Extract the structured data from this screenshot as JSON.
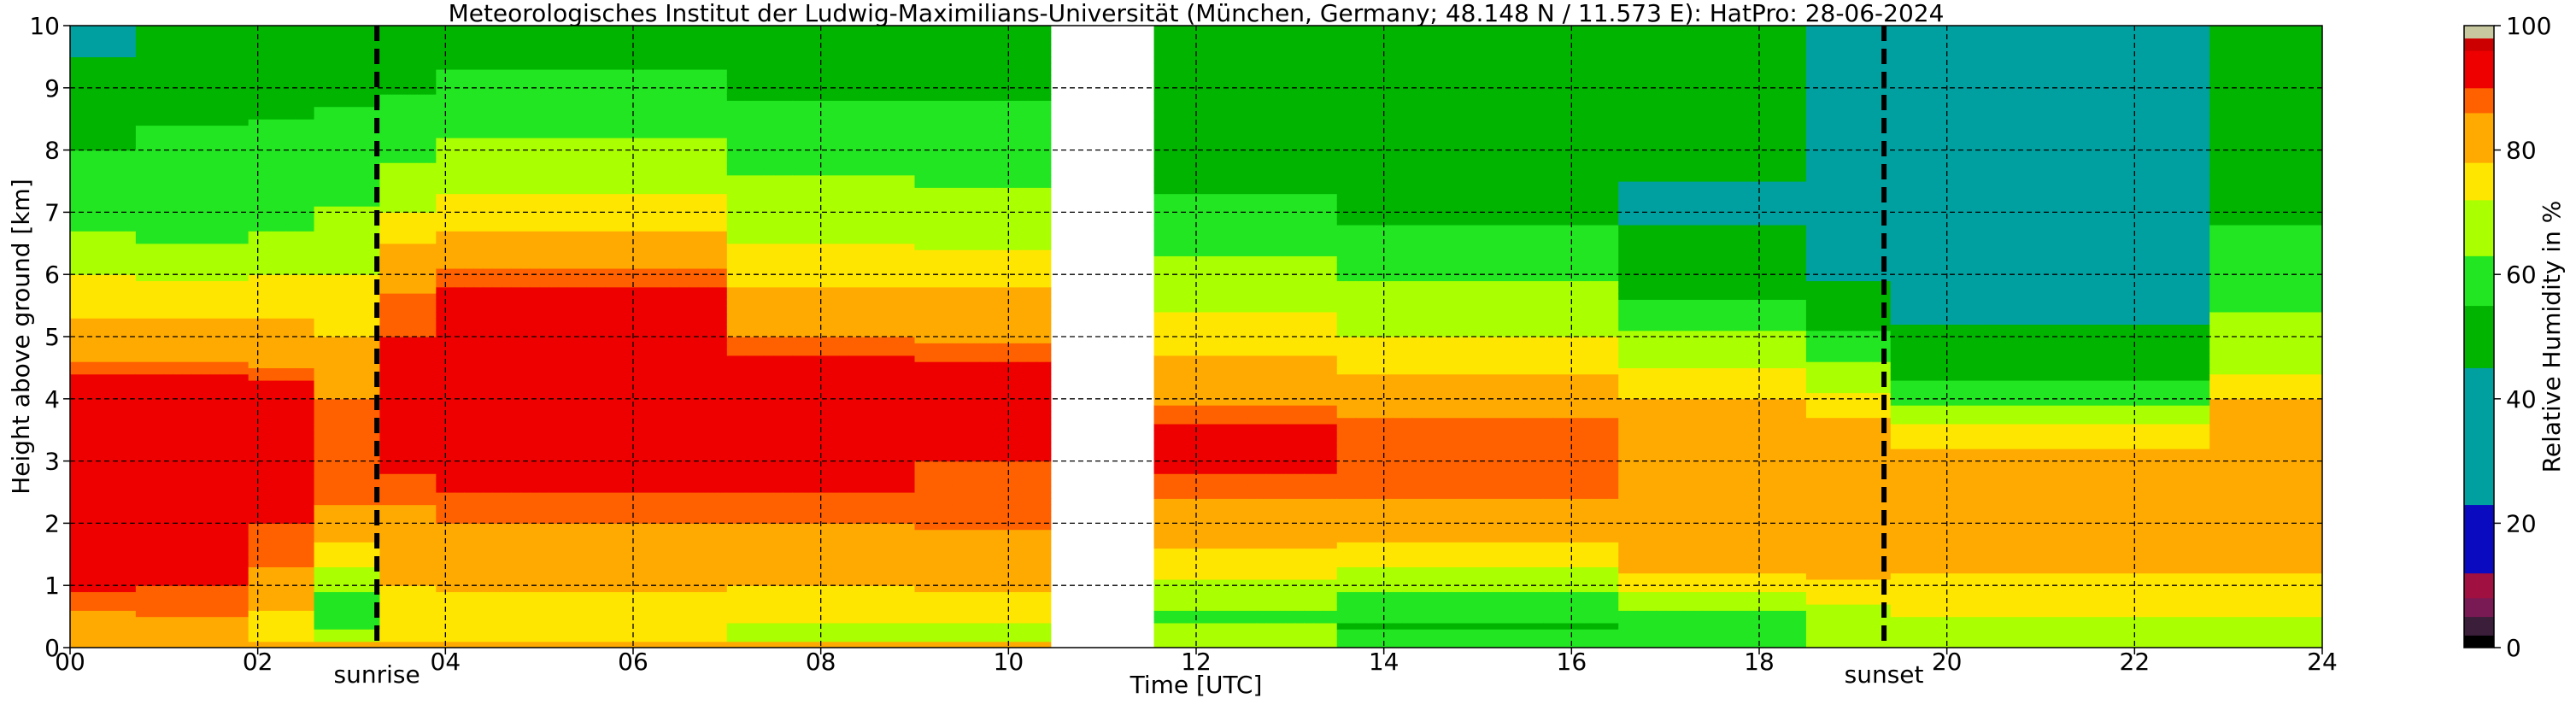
{
  "chart_data": {
    "type": "heatmap",
    "title": "Meteorologisches Institut der Ludwig-Maximilians-Universität (München, Germany; 48.148 N / 11.573 E):    HatPro: 28-06-2024",
    "xlabel": "Time [UTC]",
    "ylabel": "Height above ground [km]",
    "xlim": [
      0,
      24
    ],
    "ylim": [
      0,
      10
    ],
    "x_ticks": [
      "00",
      "02",
      "04",
      "06",
      "08",
      "10",
      "12",
      "14",
      "16",
      "18",
      "20",
      "22",
      "24"
    ],
    "y_ticks": [
      "0",
      "1",
      "2",
      "3",
      "4",
      "5",
      "6",
      "7",
      "8",
      "9",
      "10"
    ],
    "grid": true,
    "missing_data_interval": [
      10.45,
      11.55
    ],
    "colorbar": {
      "label": "Relative Humidity in %",
      "range": [
        0,
        100
      ],
      "ticks": [
        "0",
        "20",
        "40",
        "60",
        "80",
        "100"
      ],
      "levels": [
        {
          "from": 0,
          "to": 2,
          "color": "#000000"
        },
        {
          "from": 2,
          "to": 5,
          "color": "#3a1e3a"
        },
        {
          "from": 5,
          "to": 8,
          "color": "#7a1a55"
        },
        {
          "from": 8,
          "to": 12,
          "color": "#a01040"
        },
        {
          "from": 12,
          "to": 23,
          "color": "#0a0ac0"
        },
        {
          "from": 23,
          "to": 45,
          "color": "#00a0a0"
        },
        {
          "from": 45,
          "to": 55,
          "color": "#00b400"
        },
        {
          "from": 55,
          "to": 63,
          "color": "#22e622"
        },
        {
          "from": 63,
          "to": 72,
          "color": "#aaff00"
        },
        {
          "from": 72,
          "to": 78,
          "color": "#ffe600"
        },
        {
          "from": 78,
          "to": 86,
          "color": "#ffaa00"
        },
        {
          "from": 86,
          "to": 90,
          "color": "#ff6000"
        },
        {
          "from": 90,
          "to": 96,
          "color": "#ee0000"
        },
        {
          "from": 96,
          "to": 98,
          "color": "#cc0000"
        },
        {
          "from": 98,
          "to": 100,
          "color": "#c8c8a0"
        }
      ]
    },
    "annotations": [
      {
        "label": "sunrise",
        "x": 3.27
      },
      {
        "label": "sunset",
        "x": 19.33
      }
    ],
    "regions": [
      {
        "t0": 0.0,
        "t1": 0.7,
        "profile": [
          [
            0,
            86
          ],
          [
            0.12,
            80
          ],
          [
            0.3,
            82
          ],
          [
            1.0,
            92
          ],
          [
            2.5,
            93
          ],
          [
            4.3,
            92
          ],
          [
            4.8,
            82
          ],
          [
            5.8,
            74
          ],
          [
            6.8,
            62
          ],
          [
            8.0,
            55
          ],
          [
            9.5,
            45
          ],
          [
            10,
            42
          ]
        ]
      },
      {
        "t0": 0.7,
        "t1": 1.9,
        "profile": [
          [
            0,
            86
          ],
          [
            0.12,
            80
          ],
          [
            0.3,
            84
          ],
          [
            1.2,
            92
          ],
          [
            2.5,
            93
          ],
          [
            4.3,
            92
          ],
          [
            4.8,
            82
          ],
          [
            5.8,
            74
          ],
          [
            6.6,
            62
          ],
          [
            8.0,
            56
          ],
          [
            9.5,
            52
          ],
          [
            10,
            50
          ]
        ]
      },
      {
        "t0": 1.9,
        "t1": 2.6,
        "profile": [
          [
            0,
            86
          ],
          [
            0.15,
            76
          ],
          [
            0.6,
            78
          ],
          [
            1.5,
            88
          ],
          [
            2.5,
            92
          ],
          [
            4.2,
            91
          ],
          [
            4.8,
            82
          ],
          [
            5.8,
            74
          ],
          [
            6.8,
            62
          ],
          [
            8.0,
            56
          ],
          [
            10,
            52
          ]
        ]
      },
      {
        "t0": 2.6,
        "t1": 3.3,
        "profile": [
          [
            0,
            86
          ],
          [
            0.1,
            72
          ],
          [
            0.3,
            60
          ],
          [
            0.9,
            62
          ],
          [
            1.5,
            76
          ],
          [
            2.5,
            88
          ],
          [
            4.0,
            86
          ],
          [
            5.0,
            78
          ],
          [
            6.0,
            72
          ],
          [
            7.2,
            62
          ],
          [
            8.3,
            56
          ],
          [
            10,
            52
          ]
        ]
      },
      {
        "t0": 3.3,
        "t1": 3.9,
        "profile": [
          [
            0,
            86
          ],
          [
            0.2,
            74
          ],
          [
            1.0,
            78
          ],
          [
            2.0,
            84
          ],
          [
            2.8,
            90
          ],
          [
            4.5,
            92
          ],
          [
            5.5,
            88
          ],
          [
            6.5,
            78
          ],
          [
            7.5,
            66
          ],
          [
            8.5,
            56
          ],
          [
            10,
            52
          ]
        ]
      },
      {
        "t0": 3.9,
        "t1": 7.0,
        "profile": [
          [
            0,
            86
          ],
          [
            0.2,
            74
          ],
          [
            0.6,
            76
          ],
          [
            1.5,
            82
          ],
          [
            2.5,
            90
          ],
          [
            4.5,
            93
          ],
          [
            5.8,
            90
          ],
          [
            6.5,
            80
          ],
          [
            7.5,
            70
          ],
          [
            8.5,
            60
          ],
          [
            9.5,
            54
          ],
          [
            10,
            52
          ]
        ]
      },
      {
        "t0": 7.0,
        "t1": 9.0,
        "profile": [
          [
            0,
            86
          ],
          [
            0.15,
            70
          ],
          [
            0.6,
            74
          ],
          [
            1.5,
            82
          ],
          [
            2.5,
            90
          ],
          [
            4.5,
            92
          ],
          [
            5.0,
            86
          ],
          [
            6.0,
            76
          ],
          [
            7.0,
            68
          ],
          [
            8.0,
            60
          ],
          [
            9.0,
            54
          ],
          [
            10,
            52
          ]
        ]
      },
      {
        "t0": 9.0,
        "t1": 10.45,
        "profile": [
          [
            0,
            86
          ],
          [
            0.15,
            70
          ],
          [
            0.6,
            74
          ],
          [
            1.2,
            82
          ],
          [
            2.2,
            88
          ],
          [
            3.0,
            90
          ],
          [
            4.5,
            92
          ],
          [
            5.0,
            84
          ],
          [
            6.0,
            76
          ],
          [
            7.0,
            66
          ],
          [
            8.0,
            58
          ],
          [
            9.0,
            54
          ],
          [
            10,
            52
          ]
        ]
      },
      {
        "t0": 11.55,
        "t1": 13.5,
        "profile": [
          [
            0,
            66
          ],
          [
            0.5,
            62
          ],
          [
            1.2,
            74
          ],
          [
            2.0,
            82
          ],
          [
            2.8,
            90
          ],
          [
            3.6,
            90
          ],
          [
            4.2,
            82
          ],
          [
            5.0,
            76
          ],
          [
            5.8,
            68
          ],
          [
            6.8,
            58
          ],
          [
            7.8,
            52
          ],
          [
            10,
            50
          ]
        ]
      },
      {
        "t0": 13.5,
        "t1": 16.5,
        "profile": [
          [
            0,
            62
          ],
          [
            0.3,
            54
          ],
          [
            0.8,
            60
          ],
          [
            1.5,
            76
          ],
          [
            2.2,
            84
          ],
          [
            2.8,
            90
          ],
          [
            3.6,
            88
          ],
          [
            4.2,
            80
          ],
          [
            5.0,
            72
          ],
          [
            5.8,
            64
          ],
          [
            6.6,
            56
          ],
          [
            8.0,
            50
          ],
          [
            10,
            48
          ]
        ]
      },
      {
        "t0": 16.5,
        "t1": 18.5,
        "profile": [
          [
            0,
            62
          ],
          [
            0.4,
            58
          ],
          [
            1.0,
            76
          ],
          [
            2.0,
            84
          ],
          [
            3.0,
            86
          ],
          [
            3.5,
            84
          ],
          [
            4.2,
            76
          ],
          [
            5.0,
            64
          ],
          [
            6.0,
            50
          ],
          [
            7.0,
            44
          ],
          [
            8.0,
            46
          ],
          [
            10,
            50
          ]
        ]
      },
      {
        "t0": 18.5,
        "t1": 19.4,
        "profile": [
          [
            0,
            64
          ],
          [
            0.4,
            66
          ],
          [
            1.2,
            80
          ],
          [
            2.0,
            86
          ],
          [
            3.0,
            84
          ],
          [
            3.5,
            80
          ],
          [
            4.0,
            74
          ],
          [
            4.6,
            62
          ],
          [
            5.5,
            48
          ],
          [
            6.5,
            40
          ],
          [
            8.0,
            38
          ],
          [
            10,
            40
          ]
        ]
      },
      {
        "t0": 19.4,
        "t1": 22.8,
        "profile": [
          [
            0,
            62
          ],
          [
            0.5,
            72
          ],
          [
            1.5,
            80
          ],
          [
            2.5,
            80
          ],
          [
            3.2,
            78
          ],
          [
            3.6,
            72
          ],
          [
            4.0,
            60
          ],
          [
            4.6,
            50
          ],
          [
            5.5,
            42
          ],
          [
            7.0,
            38
          ],
          [
            8.5,
            38
          ],
          [
            10,
            40
          ]
        ]
      },
      {
        "t0": 22.8,
        "t1": 24.0,
        "profile": [
          [
            0,
            66
          ],
          [
            0.5,
            72
          ],
          [
            1.5,
            80
          ],
          [
            2.8,
            84
          ],
          [
            3.8,
            80
          ],
          [
            4.6,
            70
          ],
          [
            5.5,
            62
          ],
          [
            6.5,
            56
          ],
          [
            7.5,
            52
          ],
          [
            10,
            50
          ]
        ]
      }
    ]
  }
}
